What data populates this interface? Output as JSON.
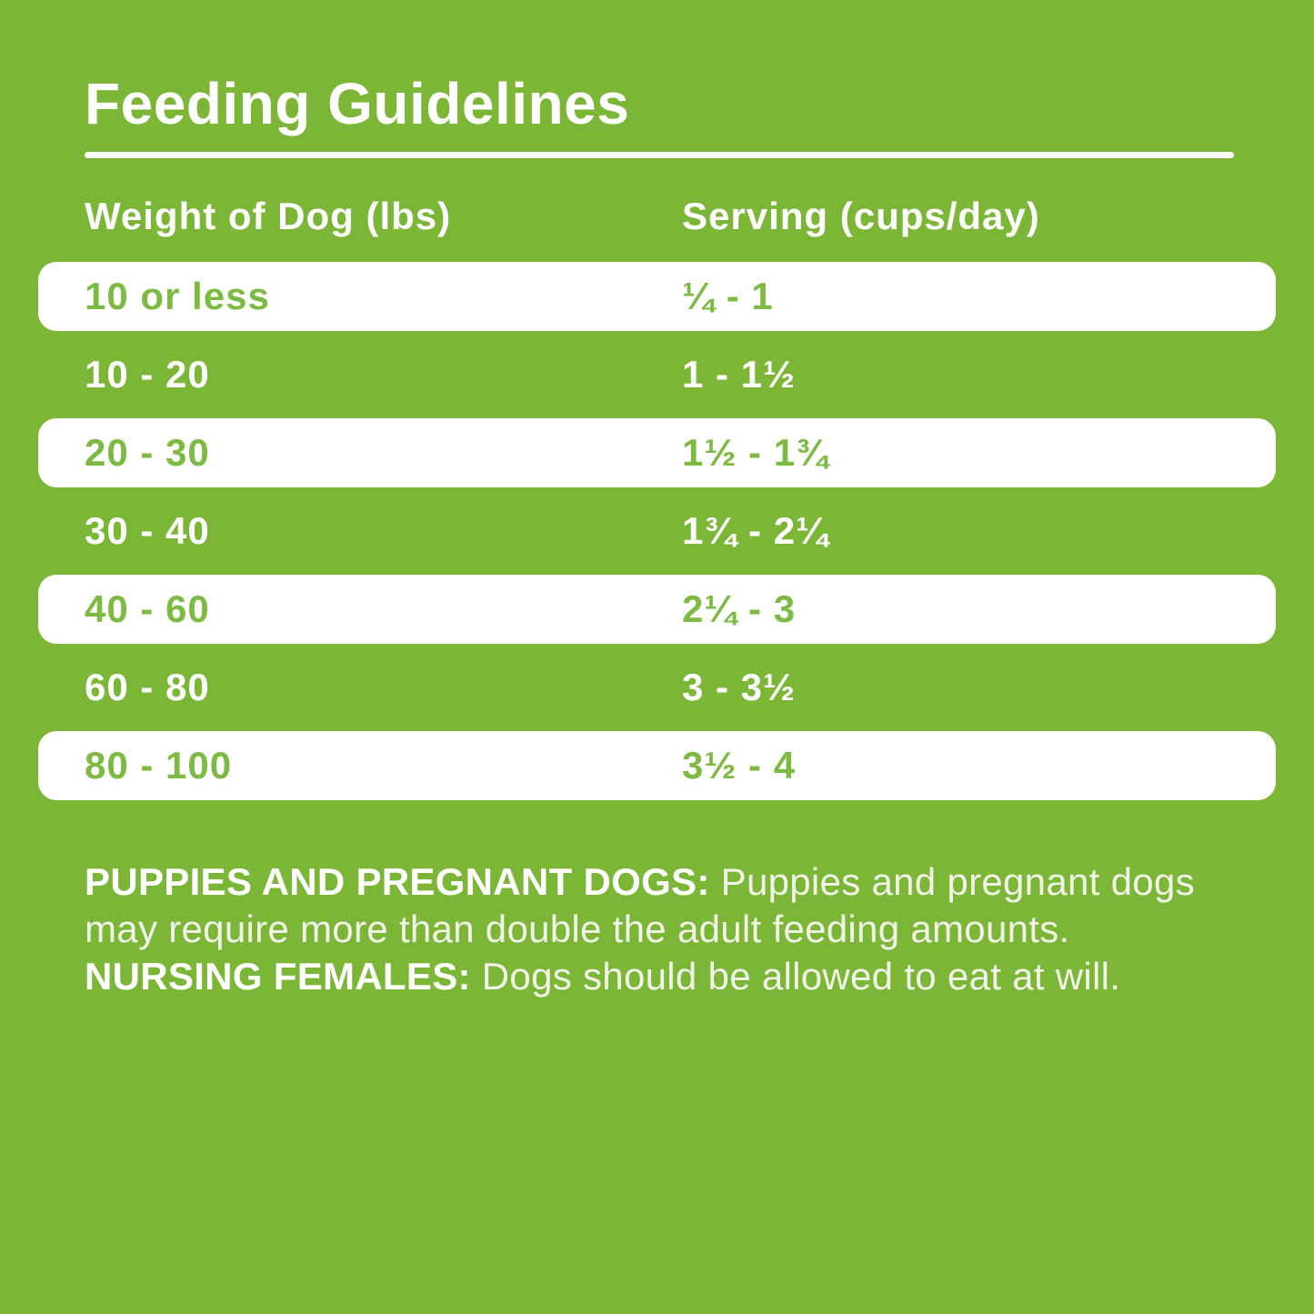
{
  "colors": {
    "background_green": "#7BB636",
    "highlight_row_white": "#FFFFFF",
    "green_text": "#7CBA42",
    "white_text": "#FFFFFF",
    "footnote_text": "#F2F4E9"
  },
  "header": {
    "title": "Feeding Guidelines"
  },
  "table": {
    "columns": [
      {
        "label": "Weight of Dog (lbs)"
      },
      {
        "label": "Serving (cups/day)"
      }
    ],
    "rows": [
      {
        "weight": "10 or less",
        "serving": "¼ - 1",
        "highlighted": true
      },
      {
        "weight": "10 - 20",
        "serving": "1 - 1½",
        "highlighted": false
      },
      {
        "weight": "20 - 30",
        "serving": "1½ - 1¾",
        "highlighted": true
      },
      {
        "weight": "30 - 40",
        "serving": "1¾ - 2¼",
        "highlighted": false
      },
      {
        "weight": "40 - 60",
        "serving": "2¼ - 3",
        "highlighted": true
      },
      {
        "weight": "60 - 80",
        "serving": "3 - 3½",
        "highlighted": false
      },
      {
        "weight": "80 - 100",
        "serving": "3½ - 4",
        "highlighted": true
      }
    ]
  },
  "footnote": {
    "segments": [
      {
        "text": "PUPPIES AND PREGNANT DOGS:",
        "bold": true
      },
      {
        "text": " Puppies and pregnant dogs may require more than double the adult feeding amounts. ",
        "bold": false
      },
      {
        "text": "NURSING FEMALES:",
        "bold": true
      },
      {
        "text": " Dogs should be allowed to eat at will.",
        "bold": false
      }
    ]
  }
}
